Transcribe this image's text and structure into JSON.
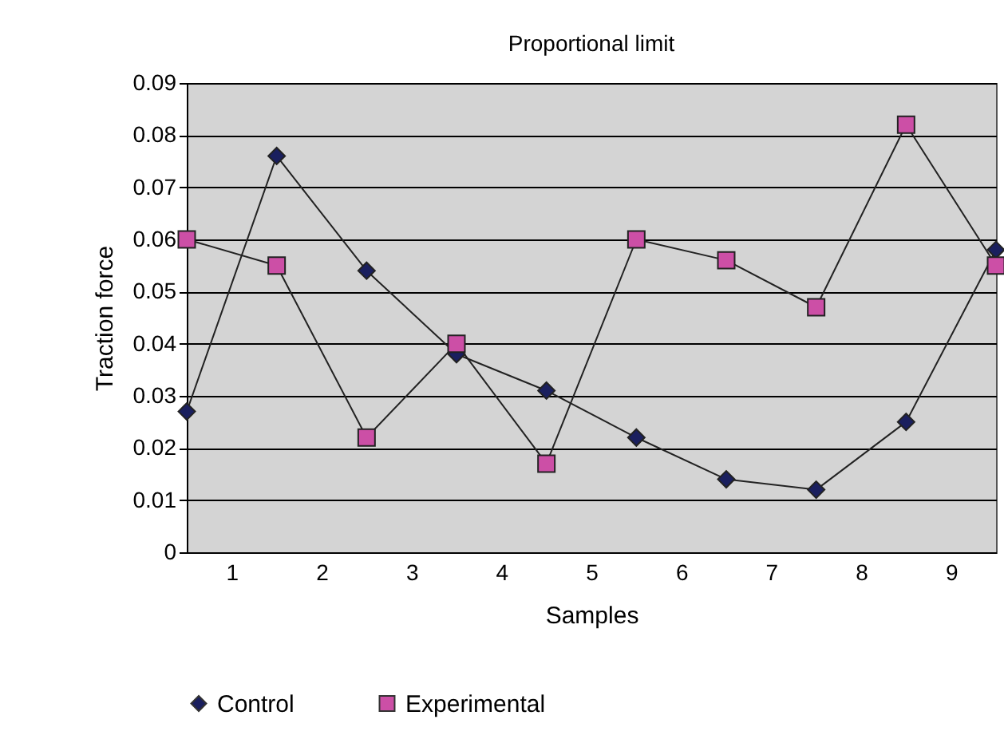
{
  "chart_data": {
    "type": "line",
    "title": "Proportional limit",
    "xlabel": "Samples",
    "ylabel": "Traction force",
    "x": [
      0.5,
      1.5,
      2.5,
      3.5,
      4.5,
      5.5,
      6.5,
      7.5,
      8.5,
      9.5
    ],
    "xlim": [
      0.5,
      9.5
    ],
    "xticks": [
      1,
      2,
      3,
      4,
      5,
      6,
      7,
      8,
      9
    ],
    "ylim": [
      0,
      0.09
    ],
    "yticks": [
      0,
      0.01,
      0.02,
      0.03,
      0.04,
      0.05,
      0.06,
      0.07,
      0.08,
      0.09
    ],
    "grid": "y",
    "legend": "bottom",
    "series": [
      {
        "name": "Control",
        "color": "#1a1f5e",
        "marker": "diamond",
        "values": [
          0.027,
          0.076,
          0.054,
          0.038,
          0.031,
          0.022,
          0.014,
          0.012,
          0.025,
          0.058
        ]
      },
      {
        "name": "Experimental",
        "color": "#cc4fa6",
        "marker": "square",
        "values": [
          0.06,
          0.055,
          0.022,
          0.04,
          0.017,
          0.06,
          0.056,
          0.047,
          0.082,
          0.055
        ]
      }
    ]
  }
}
